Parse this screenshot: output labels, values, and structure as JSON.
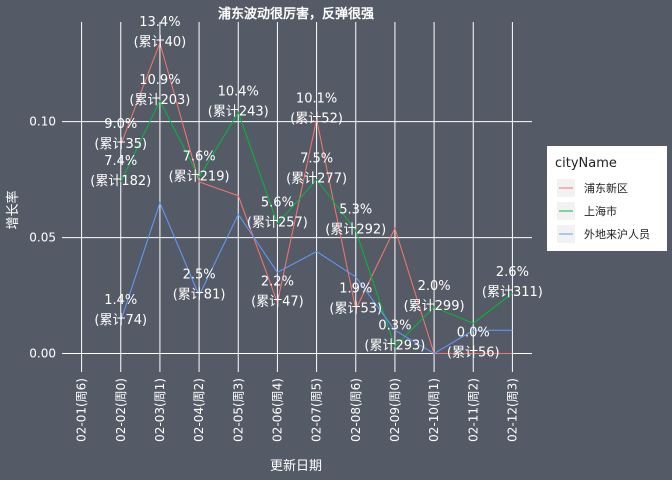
{
  "chart_data": {
    "type": "line",
    "title": "浦东波动很厉害，反弹很强",
    "xlabel": "更新日期",
    "ylabel": "增长率",
    "categories": [
      "02-01(周6)",
      "02-02(周0)",
      "02-03(周1)",
      "02-04(周2)",
      "02-05(周3)",
      "02-06(周4)",
      "02-07(周5)",
      "02-08(周6)",
      "02-09(周0)",
      "02-10(周1)",
      "02-11(周2)",
      "02-12(周3)"
    ],
    "ylim": [
      -0.008,
      0.143
    ],
    "yticks": [
      0.0,
      0.05,
      0.1
    ],
    "ytick_labels": [
      "0.00",
      "0.05",
      "0.10"
    ],
    "grid": true,
    "legend": {
      "title": "cityName",
      "position": "right"
    },
    "series": [
      {
        "name": "浦东新区",
        "color": "#f8766d",
        "values": [
          null,
          0.09,
          0.134,
          0.074,
          0.068,
          0.022,
          0.101,
          0.019,
          0.054,
          0.0,
          0.0,
          0.0
        ]
      },
      {
        "name": "上海市",
        "color": "#00ba38",
        "values": [
          null,
          0.074,
          0.109,
          0.076,
          0.104,
          0.056,
          0.075,
          0.053,
          0.003,
          0.02,
          0.013,
          0.026
        ]
      },
      {
        "name": "外地来沪人员",
        "color": "#619cff",
        "values": [
          null,
          0.014,
          0.065,
          0.025,
          0.06,
          0.035,
          0.044,
          0.033,
          0.01,
          0.0,
          0.01,
          0.01
        ]
      }
    ],
    "annotations": [
      {
        "cat": 1,
        "y": 0.09,
        "pct": "9.0%",
        "total": "(累计35)"
      },
      {
        "cat": 1,
        "y": 0.074,
        "pct": "7.4%",
        "total": "(累计182)"
      },
      {
        "cat": 1,
        "y": 0.014,
        "pct": "1.4%",
        "total": "(累计74)"
      },
      {
        "cat": 2,
        "y": 0.134,
        "pct": "13.4%",
        "total": "(累计40)"
      },
      {
        "cat": 2,
        "y": 0.109,
        "pct": "10.9%",
        "total": "(累计203)"
      },
      {
        "cat": 3,
        "y": 0.076,
        "pct": "7.6%",
        "total": "(累计219)"
      },
      {
        "cat": 3,
        "y": 0.025,
        "pct": "2.5%",
        "total": "(累计81)"
      },
      {
        "cat": 4,
        "y": 0.104,
        "pct": "10.4%",
        "total": "(累计243)"
      },
      {
        "cat": 5,
        "y": 0.056,
        "pct": "5.6%",
        "total": "(累计257)"
      },
      {
        "cat": 5,
        "y": 0.022,
        "pct": "2.2%",
        "total": "(累计47)"
      },
      {
        "cat": 6,
        "y": 0.101,
        "pct": "10.1%",
        "total": "(累计52)"
      },
      {
        "cat": 6,
        "y": 0.075,
        "pct": "7.5%",
        "total": "(累计277)"
      },
      {
        "cat": 7,
        "y": 0.053,
        "pct": "5.3%",
        "total": "(累计292)"
      },
      {
        "cat": 7,
        "y": 0.019,
        "pct": "1.9%",
        "total": "(累计53)"
      },
      {
        "cat": 8,
        "y": 0.003,
        "pct": "0.3%",
        "total": "(累计293)"
      },
      {
        "cat": 9,
        "y": 0.02,
        "pct": "2.0%",
        "total": "(累计299)"
      },
      {
        "cat": 10,
        "y": 0.0,
        "pct": "0.0%",
        "total": "(累计56)"
      },
      {
        "cat": 11,
        "y": 0.026,
        "pct": "2.6%",
        "total": "(累计311)"
      }
    ]
  }
}
